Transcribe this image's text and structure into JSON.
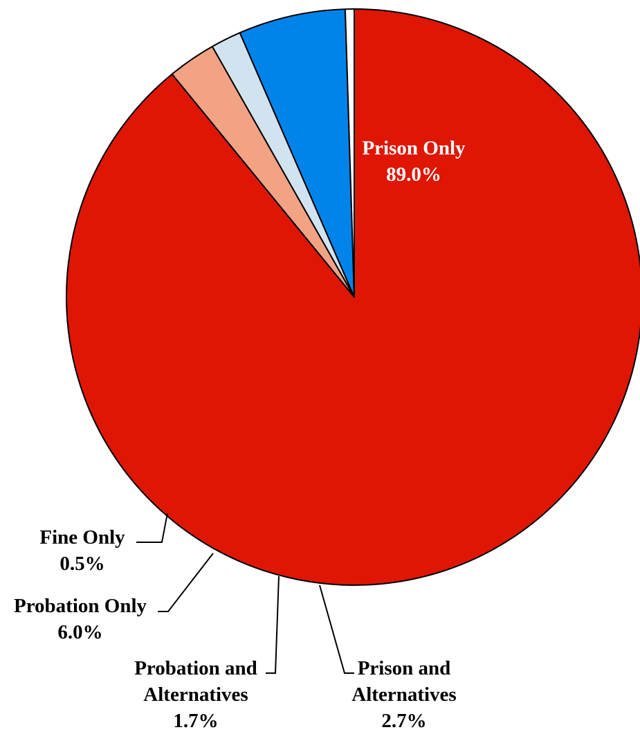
{
  "chart_data": {
    "type": "pie",
    "title": "",
    "slices": [
      {
        "label": "Prison Only",
        "value": 89.0,
        "display": "89.0%",
        "color": "#DF1604"
      },
      {
        "label": "Prison and Alternatives",
        "value": 2.7,
        "display": "2.7%",
        "color": "#F2A384"
      },
      {
        "label": "Probation and Alternatives",
        "value": 1.7,
        "display": "1.7%",
        "color": "#D2E3F0"
      },
      {
        "label": "Probation Only",
        "value": 6.0,
        "display": "6.0%",
        "color": "#0084EA"
      },
      {
        "label": "Fine Only",
        "value": 0.5,
        "display": "0.5%",
        "color": "#FFFFFF"
      }
    ],
    "labels": {
      "prison_only": {
        "line1": "Prison Only",
        "value": "89.0%"
      },
      "prison_alt": {
        "line1": "Prison and",
        "line2": "Alternatives",
        "value": "2.7%"
      },
      "probation_alt": {
        "line1": "Probation and",
        "line2": "Alternatives",
        "value": "1.7%"
      },
      "probation_only": {
        "line1": "Probation Only",
        "value": "6.0%"
      },
      "fine_only": {
        "line1": "Fine Only",
        "value": "0.5%"
      }
    }
  }
}
